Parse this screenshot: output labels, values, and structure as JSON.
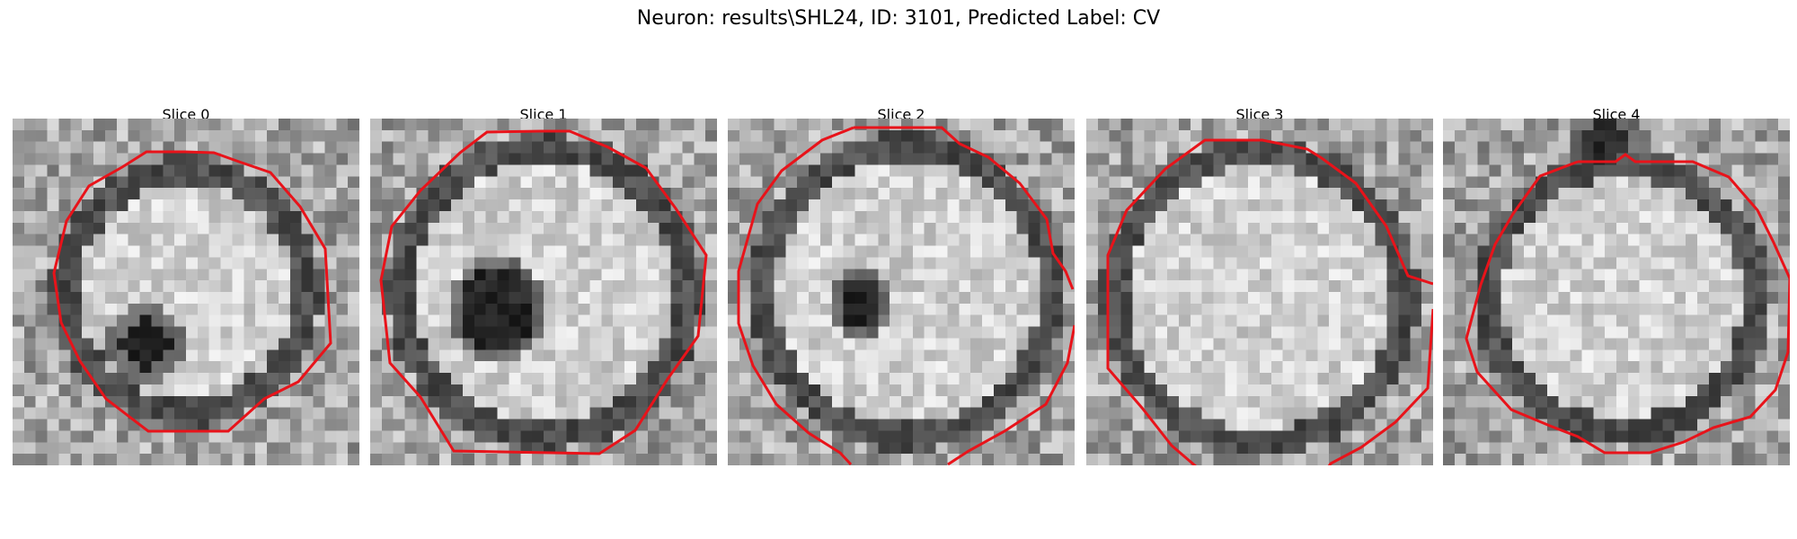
{
  "figure": {
    "title": "Neuron: results\\SHL24, ID: 3101, Predicted Label: CV"
  },
  "panels": [
    {
      "title": "Slice 0"
    },
    {
      "title": "Slice 1"
    },
    {
      "title": "Slice 2"
    },
    {
      "title": "Slice 3"
    },
    {
      "title": "Slice 4"
    }
  ],
  "colors": {
    "contour": "#e8131a",
    "background": "#ffffff"
  }
}
